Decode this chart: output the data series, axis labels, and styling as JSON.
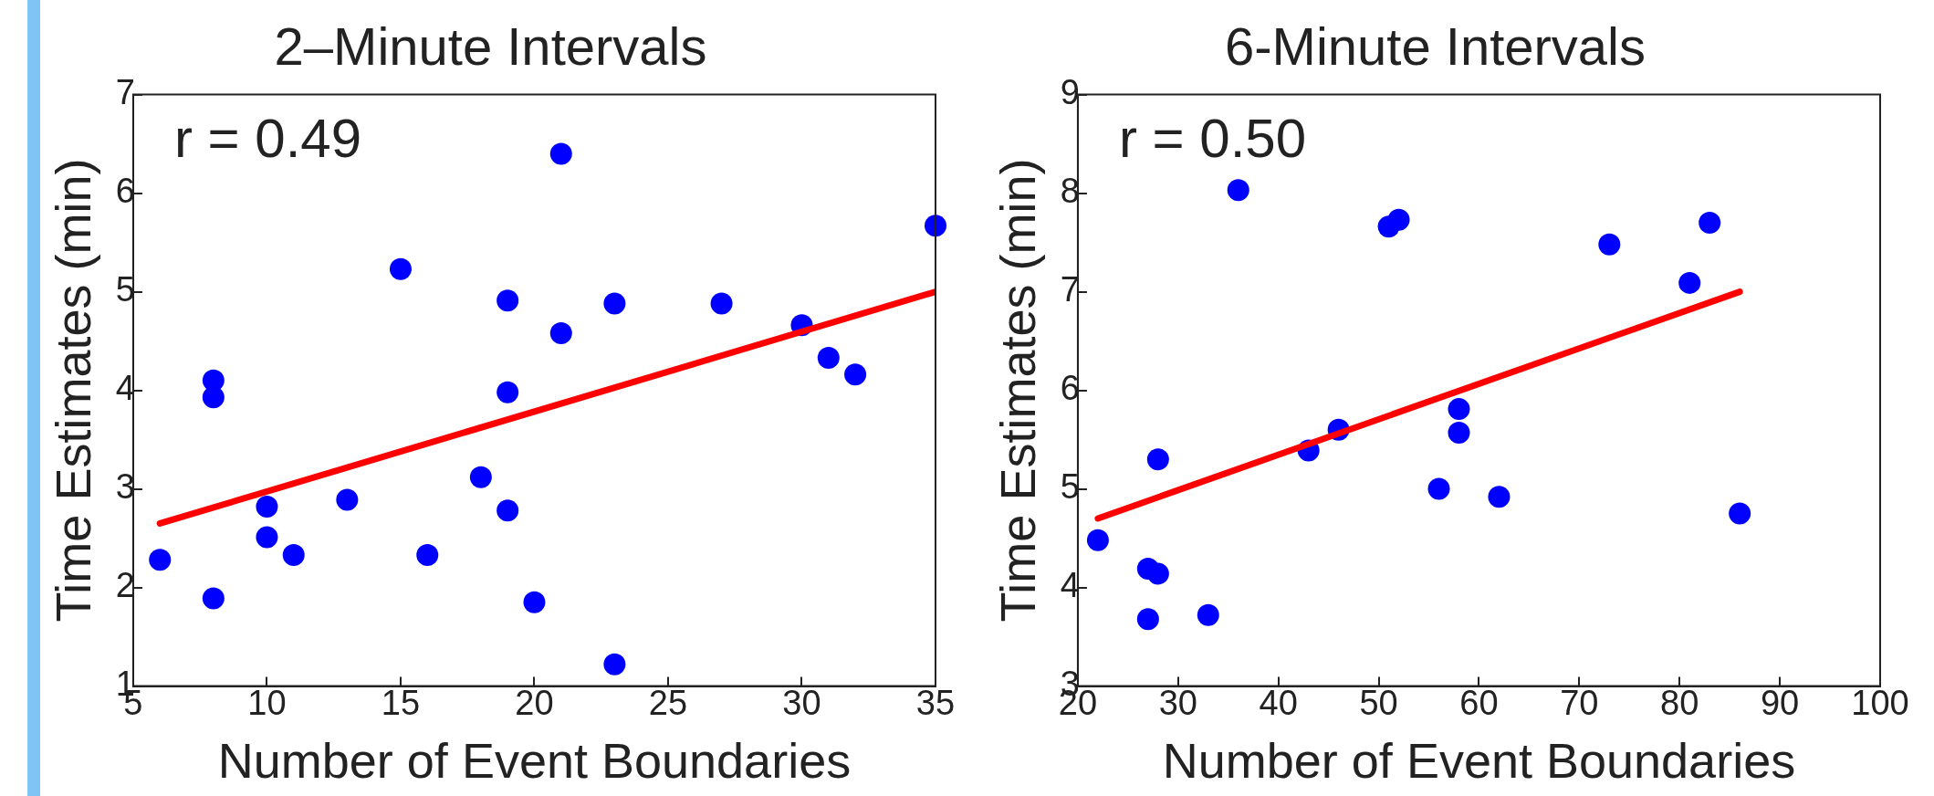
{
  "chart_data": [
    {
      "type": "scatter",
      "title": "2–Minute Intervals",
      "xlabel": "Number of Event Boundaries",
      "ylabel": "Time Estimates (min)",
      "annotations": [
        "r = 0.49"
      ],
      "xlim": [
        5,
        35
      ],
      "xticks": [
        5,
        10,
        15,
        20,
        25,
        30,
        35
      ],
      "ylim": [
        1,
        7
      ],
      "yticks": [
        1,
        2,
        3,
        4,
        5,
        6,
        7
      ],
      "grid": false,
      "legend": false,
      "marker": "circle",
      "series": [
        {
          "color": "#0000ff",
          "x": [
            6,
            8,
            8,
            8,
            10,
            10,
            11,
            13,
            15,
            16,
            18,
            19,
            19,
            19,
            20,
            21,
            21,
            23,
            23,
            27,
            30,
            31,
            32,
            35
          ],
          "values": [
            2.28,
            4.1,
            3.93,
            1.89,
            2.82,
            2.51,
            2.33,
            2.89,
            5.23,
            2.33,
            3.12,
            4.91,
            3.98,
            2.78,
            1.85,
            6.4,
            4.58,
            4.88,
            1.22,
            4.88,
            4.66,
            4.33,
            4.16,
            5.67
          ]
        },
        {
          "type": "line",
          "color": "#ff0000",
          "marker": "none",
          "x": [
            6,
            35
          ],
          "values": [
            2.65,
            5.0
          ]
        }
      ]
    },
    {
      "type": "scatter",
      "title": "6-Minute Intervals",
      "xlabel": "Number of Event Boundaries",
      "ylabel": "Time Estimates (min)",
      "annotations": [
        "r = 0.50"
      ],
      "xlim": [
        20,
        100
      ],
      "xticks": [
        20,
        30,
        40,
        50,
        60,
        70,
        80,
        90,
        100
      ],
      "ylim": [
        3,
        9
      ],
      "yticks": [
        3,
        4,
        5,
        6,
        7,
        8,
        9
      ],
      "grid": false,
      "legend": false,
      "marker": "circle",
      "series": [
        {
          "color": "#0000ff",
          "x": [
            22,
            27,
            27,
            28,
            28,
            33,
            36,
            43,
            46,
            51,
            52,
            56,
            58,
            58,
            62,
            73,
            81,
            83,
            86
          ],
          "values": [
            4.48,
            4.19,
            3.68,
            4.14,
            5.3,
            3.72,
            8.03,
            5.39,
            5.6,
            7.66,
            7.73,
            5.0,
            5.81,
            5.57,
            4.92,
            7.48,
            7.09,
            7.7,
            4.75
          ]
        },
        {
          "type": "line",
          "color": "#ff0000",
          "marker": "none",
          "x": [
            22,
            86
          ],
          "values": [
            4.7,
            7.0
          ]
        }
      ]
    }
  ]
}
